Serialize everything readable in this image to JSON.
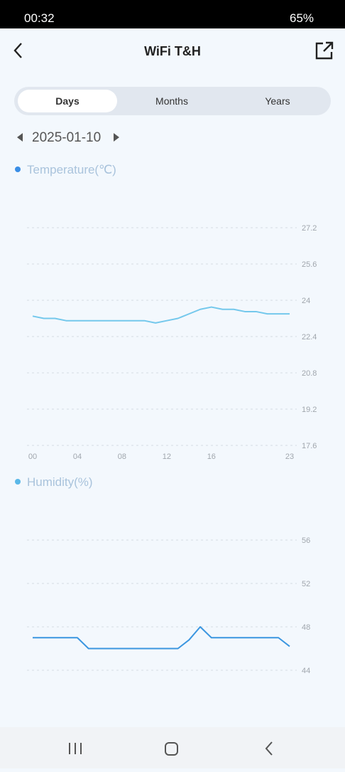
{
  "status_bar": {
    "time": "00:32",
    "battery": "65%"
  },
  "header": {
    "title": "WiFi T&H"
  },
  "tabs": [
    "Days",
    "Months",
    "Years"
  ],
  "date": "2025-01-10",
  "chart_data": [
    {
      "type": "line",
      "title": "Temperature(℃)",
      "x": [
        0,
        1,
        2,
        3,
        4,
        5,
        6,
        7,
        8,
        9,
        10,
        11,
        12,
        13,
        14,
        15,
        16,
        17,
        18,
        19,
        20,
        21,
        22,
        23
      ],
      "series": [
        {
          "name": "Temperature(℃)",
          "color": "#74c8ec",
          "values": [
            23.3,
            23.2,
            23.2,
            23.1,
            23.1,
            23.1,
            23.1,
            23.1,
            23.1,
            23.1,
            23.1,
            23.0,
            23.1,
            23.2,
            23.4,
            23.6,
            23.7,
            23.6,
            23.6,
            23.5,
            23.5,
            23.4,
            23.4,
            23.4
          ]
        }
      ],
      "xlim": [
        0,
        23
      ],
      "xticks": [
        {
          "value": 0,
          "label": "00"
        },
        {
          "value": 4,
          "label": "04"
        },
        {
          "value": 8,
          "label": "08"
        },
        12,
        16,
        23
      ],
      "ylim": [
        17.6,
        27.2
      ],
      "yticks": [
        17.6,
        19.2,
        20.8,
        22.4,
        24,
        25.6,
        27.2
      ],
      "grid": true
    },
    {
      "type": "line",
      "title": "Humidity(%)",
      "x": [
        0,
        1,
        2,
        3,
        4,
        5,
        6,
        7,
        8,
        9,
        10,
        11,
        12,
        13,
        14,
        15,
        16,
        17,
        18,
        19,
        20,
        21,
        22,
        23
      ],
      "series": [
        {
          "name": "Humidity(%)",
          "color": "#3b96e0",
          "values": [
            47,
            47,
            47,
            47,
            47,
            46,
            46,
            46,
            46,
            46,
            46,
            46,
            46,
            46,
            46.8,
            48,
            47,
            47,
            47,
            47,
            47,
            47,
            47,
            46.2
          ]
        }
      ],
      "xlim": [
        0,
        23
      ],
      "ylim": [
        40,
        56
      ],
      "yticks": [
        44,
        48,
        52,
        56
      ],
      "grid": true
    }
  ]
}
